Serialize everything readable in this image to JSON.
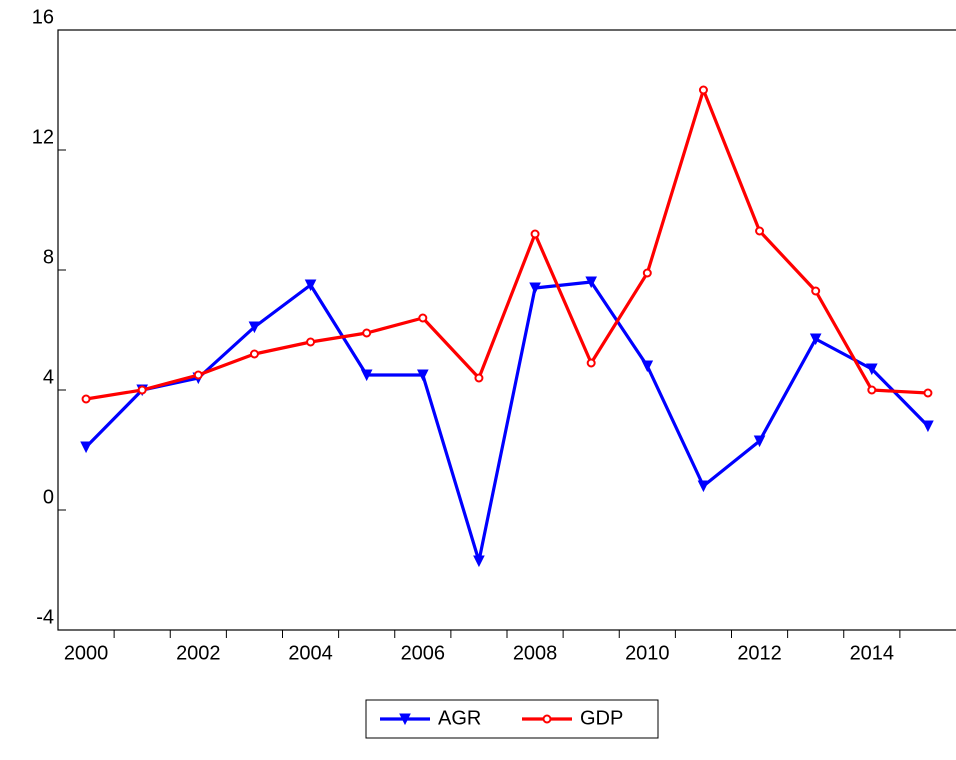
{
  "chart_data": {
    "type": "line",
    "categories": [
      "2000",
      null,
      "2002",
      null,
      "2004",
      null,
      "2006",
      null,
      "2008",
      null,
      "2010",
      null,
      "2012",
      null,
      "2014",
      null
    ],
    "series": [
      {
        "name": "AGR",
        "color": "#0000ff",
        "marker": "triangle-down",
        "values": [
          2.1,
          4.0,
          4.4,
          6.1,
          7.5,
          4.5,
          4.5,
          -1.7,
          7.4,
          7.6,
          4.8,
          0.8,
          2.3,
          5.7,
          4.7,
          2.8
        ]
      },
      {
        "name": "GDP",
        "color": "#ff0000",
        "marker": "circle",
        "values": [
          3.7,
          4.0,
          4.5,
          5.2,
          5.6,
          5.9,
          6.4,
          4.4,
          9.2,
          4.9,
          7.9,
          14.0,
          9.3,
          7.3,
          4.0,
          3.9
        ]
      }
    ],
    "ylim": [
      -4,
      16
    ],
    "yticks": [
      -4,
      0,
      4,
      8,
      12,
      16
    ],
    "legend": "bottom"
  }
}
